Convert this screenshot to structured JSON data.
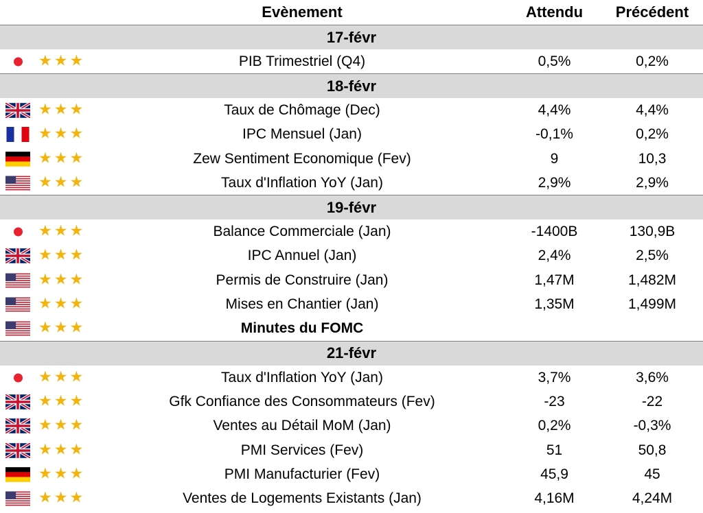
{
  "header": {
    "event": "Evènement",
    "expected": "Attendu",
    "previous": "Précédent"
  },
  "colors": {
    "star": "#f2b50f",
    "date_band": "#d9d9d9",
    "red_dot": "#e8232f"
  },
  "sections": [
    {
      "date": "17-févr",
      "rows": [
        {
          "flag": "red-dot",
          "stars": "★★★",
          "event": "PIB Trimestriel (Q4)",
          "expected": "0,5%",
          "previous": "0,2%"
        }
      ]
    },
    {
      "date": "18-févr",
      "rows": [
        {
          "flag": "uk",
          "stars": "★★★",
          "event": "Taux de Chômage (Dec)",
          "expected": "4,4%",
          "previous": "4,4%"
        },
        {
          "flag": "fr",
          "stars": "★★★",
          "event": "IPC Mensuel (Jan)",
          "expected": "-0,1%",
          "previous": "0,2%"
        },
        {
          "flag": "de",
          "stars": "★★★",
          "event": "Zew Sentiment Economique (Fev)",
          "expected": "9",
          "previous": "10,3"
        },
        {
          "flag": "us",
          "stars": "★★★",
          "event": "Taux d'Inflation  YoY (Jan)",
          "expected": "2,9%",
          "previous": "2,9%"
        }
      ]
    },
    {
      "date": "19-févr",
      "rows": [
        {
          "flag": "red-dot",
          "stars": "★★★",
          "event": "Balance Commerciale (Jan)",
          "expected": "-1400B",
          "previous": "130,9B"
        },
        {
          "flag": "uk",
          "stars": "★★★",
          "event": "IPC Annuel (Jan)",
          "expected": "2,4%",
          "previous": "2,5%"
        },
        {
          "flag": "us",
          "stars": "★★★",
          "event": "Permis de Construire (Jan)",
          "expected": "1,47M",
          "previous": "1,482M"
        },
        {
          "flag": "us",
          "stars": "★★★",
          "event": "Mises en Chantier (Jan)",
          "expected": "1,35M",
          "previous": "1,499M"
        },
        {
          "flag": "us",
          "stars": "★★★",
          "event": "Minutes du FOMC",
          "expected": "",
          "previous": "",
          "bold": true
        }
      ]
    },
    {
      "date": "21-févr",
      "rows": [
        {
          "flag": "red-dot",
          "stars": "★★★",
          "event": "Taux d'Inflation  YoY (Jan)",
          "expected": "3,7%",
          "previous": "3,6%"
        },
        {
          "flag": "uk",
          "stars": "★★★",
          "event": "Gfk Confiance des Consommateurs (Fev)",
          "expected": "-23",
          "previous": "-22"
        },
        {
          "flag": "uk",
          "stars": "★★★",
          "event": "Ventes au Détail MoM (Jan)",
          "expected": "0,2%",
          "previous": "-0,3%"
        },
        {
          "flag": "uk",
          "stars": "★★★",
          "event": "PMI Services (Fev)",
          "expected": "51",
          "previous": "50,8"
        },
        {
          "flag": "de",
          "stars": "★★★",
          "event": "PMI Manufacturier (Fev)",
          "expected": "45,9",
          "previous": "45"
        },
        {
          "flag": "us",
          "stars": "★★★",
          "event": "Ventes de Logements Existants (Jan)",
          "expected": "4,16M",
          "previous": "4,24M"
        }
      ]
    }
  ]
}
